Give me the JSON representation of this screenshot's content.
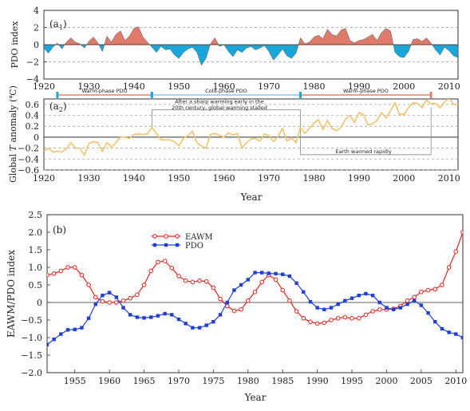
{
  "chart_data": [
    {
      "id": "a1",
      "type": "area",
      "panel_label": "(a",
      "panel_sub": "1",
      "panel_close": ")",
      "ylabel": "PDO index",
      "xlim": [
        1920,
        2012
      ],
      "ylim": [
        -4,
        4
      ],
      "xticks": [
        1920,
        1930,
        1940,
        1950,
        1960,
        1970,
        1980,
        1990,
        2000,
        2010
      ],
      "yticks": [
        4,
        2,
        0,
        -2,
        -4
      ],
      "grid": true,
      "colors": {
        "positive": "#e07a6a",
        "negative": "#1aa6d9"
      },
      "x": [
        1920,
        1921,
        1922,
        1923,
        1924,
        1925,
        1926,
        1927,
        1928,
        1929,
        1930,
        1931,
        1932,
        1933,
        1934,
        1935,
        1936,
        1937,
        1938,
        1939,
        1940,
        1941,
        1942,
        1943,
        1944,
        1945,
        1946,
        1947,
        1948,
        1949,
        1950,
        1951,
        1952,
        1953,
        1954,
        1955,
        1956,
        1957,
        1958,
        1959,
        1960,
        1961,
        1962,
        1963,
        1964,
        1965,
        1966,
        1967,
        1968,
        1969,
        1970,
        1971,
        1972,
        1973,
        1974,
        1975,
        1976,
        1977,
        1978,
        1979,
        1980,
        1981,
        1982,
        1983,
        1984,
        1985,
        1986,
        1987,
        1988,
        1989,
        1990,
        1991,
        1992,
        1993,
        1994,
        1995,
        1996,
        1997,
        1998,
        1999,
        2000,
        2001,
        2002,
        2003,
        2004,
        2005,
        2006,
        2007,
        2008,
        2009,
        2010,
        2011,
        2012
      ],
      "values": [
        -0.4,
        -1.0,
        -0.3,
        0.2,
        -0.5,
        0.3,
        0.8,
        0.3,
        0.1,
        -0.4,
        0.4,
        0.9,
        0.2,
        -0.8,
        1.0,
        0.3,
        1.2,
        1.6,
        0.5,
        1.0,
        1.9,
        2.1,
        0.9,
        0.3,
        -0.3,
        -0.9,
        -0.2,
        -0.6,
        -0.5,
        -1.2,
        -1.6,
        -0.9,
        -0.5,
        -0.3,
        -0.9,
        -2.4,
        -1.6,
        0.1,
        0.8,
        -0.2,
        0.0,
        -0.8,
        -1.4,
        -0.6,
        -0.9,
        -0.4,
        -0.2,
        -0.6,
        -0.4,
        -0.1,
        -0.8,
        -1.8,
        -1.2,
        -0.5,
        -1.3,
        -1.6,
        -1.0,
        0.8,
        0.1,
        0.3,
        0.9,
        1.1,
        0.7,
        1.8,
        1.2,
        1.0,
        1.7,
        1.9,
        0.5,
        0.2,
        0.5,
        0.6,
        0.9,
        1.2,
        0.5,
        1.4,
        1.9,
        1.6,
        -0.9,
        -1.4,
        -1.5,
        -0.8,
        0.6,
        0.7,
        0.4,
        0.8,
        0.2,
        -0.6,
        -1.2,
        -0.3,
        -0.7,
        -1.3,
        -1.5
      ]
    },
    {
      "id": "a2",
      "type": "line",
      "panel_label": "(a",
      "panel_sub": "2",
      "panel_close": ")",
      "ylabel_pre": "Global ",
      "ylabel_ital": "T",
      "ylabel_post": " anomaly (℃)",
      "xlabel": "Year",
      "xlim": [
        1920,
        2012
      ],
      "ylim": [
        -0.6,
        0.7
      ],
      "xticks": [
        1920,
        1930,
        1940,
        1950,
        1960,
        1970,
        1980,
        1990,
        2000,
        2010
      ],
      "yticks": [
        0.6,
        0.4,
        0.2,
        0,
        -0.2,
        -0.4,
        -0.6
      ],
      "ytick_labels": [
        "0.6",
        "0.4",
        "0.2",
        "0",
        "−0.2",
        "−0.4",
        "−0.6"
      ],
      "grid": true,
      "colors": {
        "line": "#f5c26b",
        "phase_bar": "#e0806e",
        "phase_end": "#1aa6d9"
      },
      "phases": [
        {
          "label": "Warm-phase PDO",
          "start": 1923,
          "end": 1944
        },
        {
          "label": "Cold-phase PDO",
          "start": 1944,
          "end": 1977
        },
        {
          "label": "Warm-phase PDO",
          "start": 1977,
          "end": 2006
        }
      ],
      "annotations": {
        "stall": "After a sharp warming early in the|20th century, global warming stalled",
        "rapid": "Earth warmed rapidly"
      },
      "x": [
        1920,
        1921,
        1922,
        1923,
        1924,
        1925,
        1926,
        1927,
        1928,
        1929,
        1930,
        1931,
        1932,
        1933,
        1934,
        1935,
        1936,
        1937,
        1938,
        1939,
        1940,
        1941,
        1942,
        1943,
        1944,
        1945,
        1946,
        1947,
        1948,
        1949,
        1950,
        1951,
        1952,
        1953,
        1954,
        1955,
        1956,
        1957,
        1958,
        1959,
        1960,
        1961,
        1962,
        1963,
        1964,
        1965,
        1966,
        1967,
        1968,
        1969,
        1970,
        1971,
        1972,
        1973,
        1974,
        1975,
        1976,
        1977,
        1978,
        1979,
        1980,
        1981,
        1982,
        1983,
        1984,
        1985,
        1986,
        1987,
        1988,
        1989,
        1990,
        1991,
        1992,
        1993,
        1994,
        1995,
        1996,
        1997,
        1998,
        1999,
        2000,
        2001,
        2002,
        2003,
        2004,
        2005,
        2006,
        2007,
        2008,
        2009,
        2010,
        2011,
        2012
      ],
      "values": [
        -0.25,
        -0.2,
        -0.27,
        -0.26,
        -0.27,
        -0.21,
        -0.1,
        -0.2,
        -0.2,
        -0.33,
        -0.12,
        -0.08,
        -0.1,
        -0.26,
        -0.1,
        -0.18,
        -0.1,
        0.0,
        0.0,
        -0.02,
        0.05,
        0.06,
        0.05,
        0.06,
        0.18,
        0.07,
        -0.05,
        -0.05,
        -0.05,
        -0.08,
        -0.16,
        -0.02,
        0.03,
        0.11,
        -0.1,
        -0.16,
        -0.2,
        0.05,
        0.07,
        0.03,
        0.0,
        0.08,
        0.04,
        0.07,
        -0.2,
        -0.1,
        -0.03,
        -0.02,
        -0.07,
        0.06,
        0.03,
        -0.08,
        0.01,
        0.16,
        -0.07,
        -0.01,
        -0.1,
        0.18,
        0.07,
        0.16,
        0.26,
        0.32,
        0.14,
        0.31,
        0.16,
        0.12,
        0.18,
        0.33,
        0.4,
        0.27,
        0.45,
        0.41,
        0.23,
        0.24,
        0.31,
        0.45,
        0.35,
        0.48,
        0.63,
        0.42,
        0.42,
        0.54,
        0.63,
        0.62,
        0.54,
        0.68,
        0.61,
        0.62,
        0.54,
        0.64,
        0.72,
        0.6,
        0.6
      ]
    },
    {
      "id": "b",
      "type": "line",
      "panel_label": "(b)",
      "ylabel": "EAWM/PDO index",
      "xlabel": "Year",
      "xlim": [
        1951,
        2011
      ],
      "ylim": [
        -2.0,
        2.5
      ],
      "xticks": [
        1955,
        1960,
        1965,
        1970,
        1975,
        1980,
        1985,
        1990,
        1995,
        2000,
        2005,
        2010
      ],
      "yticks": [
        2.5,
        2.0,
        1.5,
        1.0,
        0.5,
        0,
        -0.5,
        -1.0,
        -1.5,
        -2.0
      ],
      "ytick_labels": [
        "2.5",
        "2.0",
        "1.5",
        "1.0",
        "0.5",
        "0",
        "−0.5",
        "−1.0",
        "−1.5",
        "−2.0"
      ],
      "legend": "upper-left",
      "x": [
        1951,
        1952,
        1953,
        1954,
        1955,
        1956,
        1957,
        1958,
        1959,
        1960,
        1961,
        1962,
        1963,
        1964,
        1965,
        1966,
        1967,
        1968,
        1969,
        1970,
        1971,
        1972,
        1973,
        1974,
        1975,
        1976,
        1977,
        1978,
        1979,
        1980,
        1981,
        1982,
        1983,
        1984,
        1985,
        1986,
        1987,
        1988,
        1989,
        1990,
        1991,
        1992,
        1993,
        1994,
        1995,
        1996,
        1997,
        1998,
        1999,
        2000,
        2001,
        2002,
        2003,
        2004,
        2005,
        2006,
        2007,
        2008,
        2009,
        2010,
        2011
      ],
      "series": [
        {
          "name": "EAWM",
          "color": "#e8201c",
          "marker": "circle",
          "values": [
            0.78,
            0.82,
            0.9,
            1.0,
            1.0,
            0.78,
            0.5,
            0.15,
            0.03,
            0.0,
            0.0,
            0.05,
            0.12,
            0.22,
            0.5,
            0.9,
            1.15,
            1.18,
            0.98,
            0.75,
            0.62,
            0.58,
            0.62,
            0.6,
            0.42,
            0.1,
            -0.1,
            -0.24,
            -0.2,
            0.05,
            0.3,
            0.58,
            0.78,
            0.65,
            0.35,
            0.05,
            -0.25,
            -0.45,
            -0.55,
            -0.6,
            -0.58,
            -0.5,
            -0.45,
            -0.42,
            -0.45,
            -0.45,
            -0.35,
            -0.25,
            -0.2,
            -0.2,
            -0.18,
            -0.1,
            0.05,
            0.15,
            0.3,
            0.35,
            0.38,
            0.5,
            1.0,
            1.45,
            2.0
          ]
        },
        {
          "name": "PDO",
          "color": "#1f3fd8",
          "marker": "square",
          "values": [
            -1.2,
            -1.05,
            -0.9,
            -0.78,
            -0.77,
            -0.72,
            -0.45,
            -0.05,
            0.2,
            0.28,
            0.15,
            -0.15,
            -0.35,
            -0.42,
            -0.44,
            -0.42,
            -0.38,
            -0.32,
            -0.35,
            -0.48,
            -0.6,
            -0.72,
            -0.72,
            -0.65,
            -0.55,
            -0.35,
            0.0,
            0.35,
            0.5,
            0.65,
            0.85,
            0.85,
            0.83,
            0.82,
            0.8,
            0.75,
            0.55,
            0.3,
            0.02,
            -0.15,
            -0.2,
            -0.15,
            -0.05,
            0.05,
            0.12,
            0.2,
            0.25,
            0.2,
            0.0,
            -0.15,
            -0.2,
            -0.15,
            -0.05,
            0.05,
            -0.08,
            -0.3,
            -0.55,
            -0.75,
            -0.85,
            -0.9,
            -1.0
          ]
        }
      ]
    }
  ]
}
